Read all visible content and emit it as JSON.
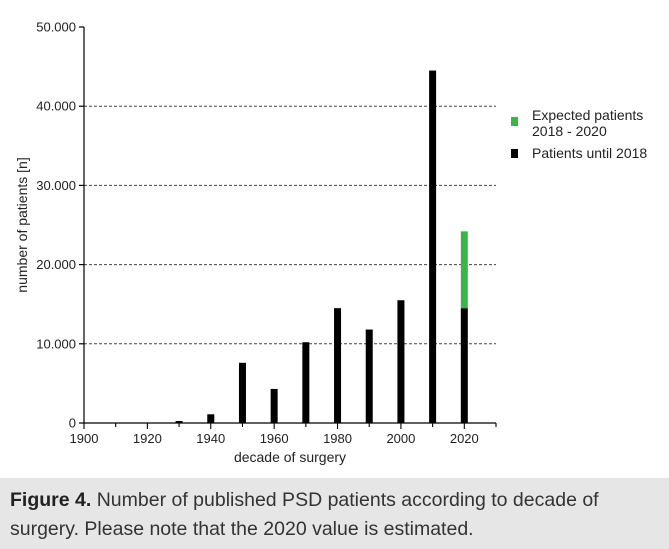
{
  "chart_data": {
    "type": "bar",
    "stacked": true,
    "xlabel": "decade of surgery",
    "ylabel": "number of patients [n]",
    "ylim": [
      0,
      50000
    ],
    "xlim": [
      1900,
      2030
    ],
    "yticks": [
      0,
      10000,
      20000,
      30000,
      40000,
      50000
    ],
    "ytick_labels": [
      "0",
      "10.000",
      "20.000",
      "30.000",
      "40.000",
      "50.000"
    ],
    "xticks": [
      1900,
      1920,
      1940,
      1960,
      1980,
      2000,
      2020
    ],
    "xtick_labels": [
      "1900",
      "1920",
      "1940",
      "1960",
      "1980",
      "2000",
      "2020"
    ],
    "grid": "horizontal dashed at 10.000, 20.000, 30.000, 40.000",
    "x": [
      1900,
      1910,
      1920,
      1930,
      1940,
      1950,
      1960,
      1970,
      1980,
      1990,
      2000,
      2010,
      2020
    ],
    "series": [
      {
        "name": "Patients until 2018",
        "color": "#000000",
        "values": [
          10,
          20,
          60,
          250,
          1100,
          7600,
          4300,
          10200,
          14500,
          11800,
          15500,
          44500,
          14500
        ]
      },
      {
        "name": "Expected patients 2018 - 2020",
        "color": "#3bb54a",
        "values": [
          0,
          0,
          0,
          0,
          0,
          0,
          0,
          0,
          0,
          0,
          0,
          0,
          9700
        ]
      }
    ],
    "legend_position": "right",
    "legend": [
      {
        "lines": [
          "Expected patients",
          "2018 - 2020"
        ],
        "color": "#3bb54a"
      },
      {
        "lines": [
          "Patients until 2018"
        ],
        "color": "#000000"
      }
    ]
  },
  "caption": {
    "lead": "Figure 4.",
    "text": "Number of published PSD patients according to decade of surgery. Please note that the 2020 value is estimated."
  }
}
